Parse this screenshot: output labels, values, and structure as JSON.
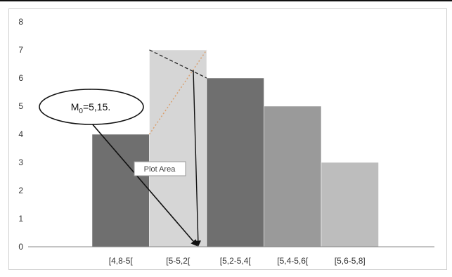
{
  "chart_data": {
    "type": "bar",
    "categories": [
      "[4,8-5[",
      "[5-5,2[",
      "[5,2-5,4[",
      "[5,4-5,6[",
      "[5,6-5,8]"
    ],
    "values": [
      4,
      7,
      6,
      5,
      3
    ],
    "ylim": [
      0,
      8
    ],
    "yticks": [
      "0",
      "1",
      "2",
      "3",
      "4",
      "5",
      "6",
      "7",
      "8"
    ],
    "grid": false,
    "bar_colors": [
      "#6f6f6f",
      "#d6d6d6",
      "#6f6f6f",
      "#9a9a9a",
      "#bdbdbd"
    ],
    "annotations": {
      "mode_label_main": "M",
      "mode_label_sub": "0",
      "mode_label_rest": "=5,15.",
      "tooltip": "Plot Area"
    }
  }
}
